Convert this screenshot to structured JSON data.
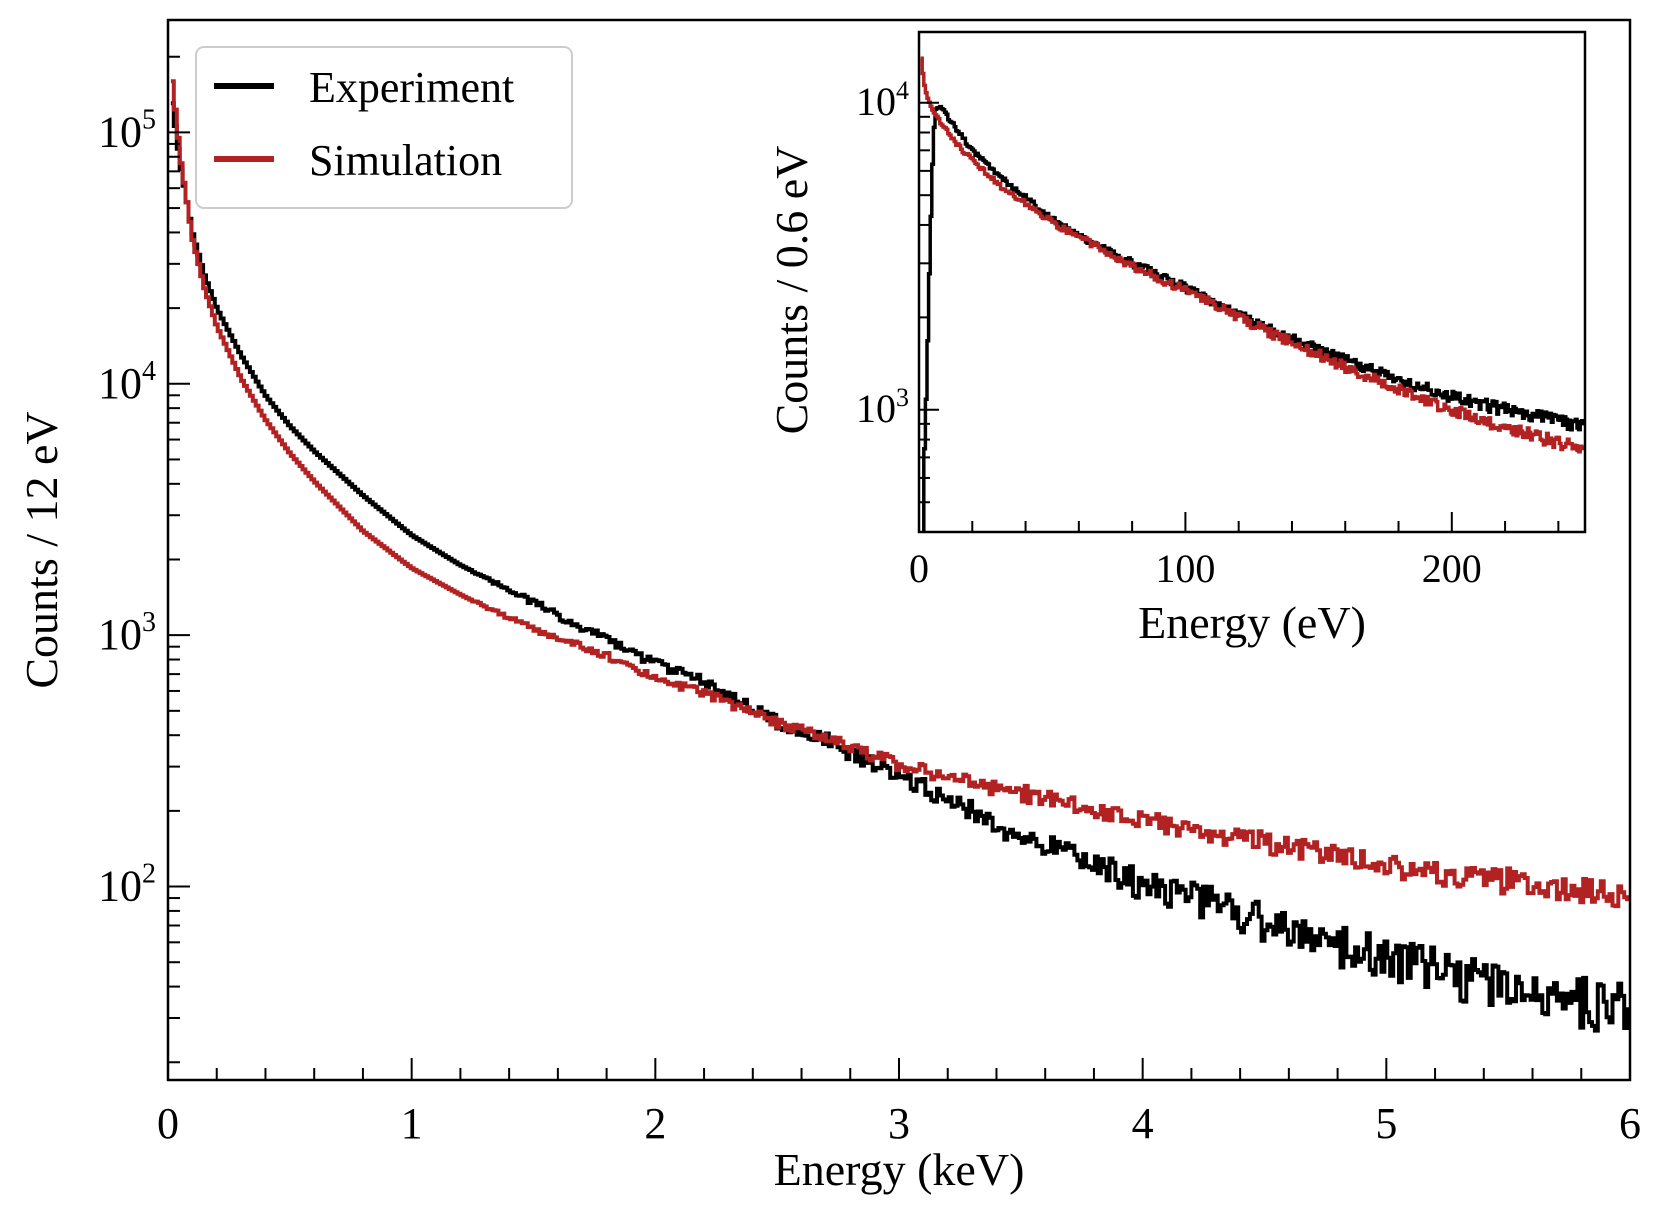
{
  "colors": {
    "experiment": "#000000",
    "simulation": "#b22222",
    "axes": "#000000",
    "background": "#ffffff"
  },
  "legend": {
    "placement": "top-left",
    "items": [
      {
        "label": "Experiment",
        "color": "#000000"
      },
      {
        "label": "Simulation",
        "color": "#b22222"
      }
    ]
  },
  "chart_data": [
    {
      "type": "line",
      "panel": "main",
      "xlabel": "Energy (keV)",
      "ylabel": "Counts / 12 eV",
      "xlim": [
        0,
        6
      ],
      "ylim": [
        17,
        280000
      ],
      "yscale": "log",
      "xticks": [
        0,
        1,
        2,
        3,
        4,
        5,
        6
      ],
      "yticks": [
        {
          "value": 100,
          "base": "10",
          "exp": "2"
        },
        {
          "value": 1000,
          "base": "10",
          "exp": "3"
        },
        {
          "value": 10000,
          "base": "10",
          "exp": "4"
        },
        {
          "value": 100000,
          "base": "10",
          "exp": "5"
        }
      ],
      "grid": false,
      "series": [
        {
          "name": "Experiment",
          "color": "#000000",
          "x": [
            0.01,
            0.05,
            0.1,
            0.15,
            0.2,
            0.3,
            0.4,
            0.5,
            0.6,
            0.8,
            1.0,
            1.2,
            1.5,
            1.8,
            2.0,
            2.3,
            2.5,
            2.7,
            3.0,
            3.2,
            3.5,
            3.8,
            4.0,
            4.3,
            4.5,
            4.8,
            5.0,
            5.3,
            5.5,
            5.8,
            6.0
          ],
          "y": [
            150000,
            75000,
            40000,
            27000,
            20000,
            13000,
            9000,
            6800,
            5400,
            3600,
            2500,
            1900,
            1350,
            950,
            780,
            590,
            450,
            380,
            280,
            220,
            160,
            122,
            102,
            85,
            72,
            58,
            52,
            44,
            40,
            34,
            31
          ],
          "noise": [
            0,
            0,
            0,
            0,
            0,
            0,
            0,
            0,
            0,
            0,
            0,
            0,
            0.02,
            0.03,
            0.03,
            0.04,
            0.04,
            0.05,
            0.05,
            0.06,
            0.07,
            0.08,
            0.09,
            0.1,
            0.11,
            0.12,
            0.13,
            0.14,
            0.15,
            0.16,
            0.17
          ]
        },
        {
          "name": "Simulation",
          "color": "#b22222",
          "x": [
            0.01,
            0.05,
            0.1,
            0.15,
            0.2,
            0.3,
            0.4,
            0.5,
            0.6,
            0.8,
            1.0,
            1.2,
            1.5,
            1.8,
            2.0,
            2.3,
            2.5,
            2.7,
            3.0,
            3.2,
            3.5,
            3.8,
            4.0,
            4.3,
            4.5,
            4.8,
            5.0,
            5.3,
            5.5,
            5.8,
            6.0
          ],
          "y": [
            190000,
            80000,
            38000,
            24000,
            17000,
            10500,
            7200,
            5300,
            4100,
            2600,
            1850,
            1450,
            1050,
            830,
            680,
            540,
            450,
            390,
            305,
            270,
            235,
            200,
            185,
            160,
            150,
            130,
            122,
            110,
            104,
            96,
            90
          ],
          "noise": [
            0,
            0,
            0,
            0,
            0,
            0,
            0,
            0,
            0,
            0,
            0,
            0,
            0.02,
            0.02,
            0.02,
            0.03,
            0.03,
            0.03,
            0.04,
            0.04,
            0.05,
            0.05,
            0.05,
            0.06,
            0.06,
            0.07,
            0.07,
            0.07,
            0.08,
            0.08,
            0.08
          ]
        }
      ]
    },
    {
      "type": "line",
      "panel": "inset",
      "xlabel": "Energy (eV)",
      "ylabel": "Counts / 0.6 eV",
      "xlim": [
        0,
        250
      ],
      "ylim": [
        400,
        17000
      ],
      "yscale": "log",
      "xticks": [
        0,
        100,
        200
      ],
      "yticks": [
        {
          "value": 1000,
          "base": "10",
          "exp": "3"
        },
        {
          "value": 10000,
          "base": "10",
          "exp": "4"
        }
      ],
      "grid": false,
      "series": [
        {
          "name": "Experiment",
          "color": "#000000",
          "x": [
            1.5,
            2.0,
            3.0,
            4.0,
            5.0,
            6.0,
            8.0,
            10,
            15,
            20,
            30,
            40,
            50,
            60,
            80,
            100,
            120,
            140,
            160,
            180,
            200,
            220,
            240,
            250
          ],
          "y": [
            400,
            700,
            1300,
            3000,
            6000,
            9500,
            9600,
            9200,
            8000,
            7000,
            5800,
            4900,
            4200,
            3700,
            3000,
            2500,
            2050,
            1700,
            1450,
            1250,
            1100,
            1000,
            920,
            880
          ],
          "noise": [
            0,
            0,
            0,
            0,
            0,
            0,
            0.01,
            0.01,
            0.01,
            0.01,
            0.01,
            0.015,
            0.015,
            0.015,
            0.02,
            0.02,
            0.02,
            0.025,
            0.025,
            0.025,
            0.03,
            0.03,
            0.03,
            0.03
          ]
        },
        {
          "name": "Simulation",
          "color": "#b22222",
          "x": [
            0.5,
            1.0,
            2.0,
            3.0,
            5.0,
            8.0,
            10,
            15,
            20,
            30,
            40,
            50,
            60,
            80,
            100,
            120,
            140,
            160,
            180,
            200,
            220,
            240,
            250
          ],
          "y": [
            16000,
            13500,
            11500,
            10500,
            9500,
            8700,
            8200,
            7200,
            6500,
            5400,
            4700,
            4100,
            3650,
            2950,
            2450,
            2000,
            1650,
            1380,
            1170,
            1000,
            880,
            780,
            740
          ],
          "noise": [
            0,
            0,
            0,
            0,
            0,
            0.01,
            0.01,
            0.01,
            0.01,
            0.01,
            0.015,
            0.015,
            0.015,
            0.02,
            0.02,
            0.02,
            0.025,
            0.025,
            0.025,
            0.03,
            0.03,
            0.03,
            0.03
          ]
        }
      ]
    }
  ]
}
